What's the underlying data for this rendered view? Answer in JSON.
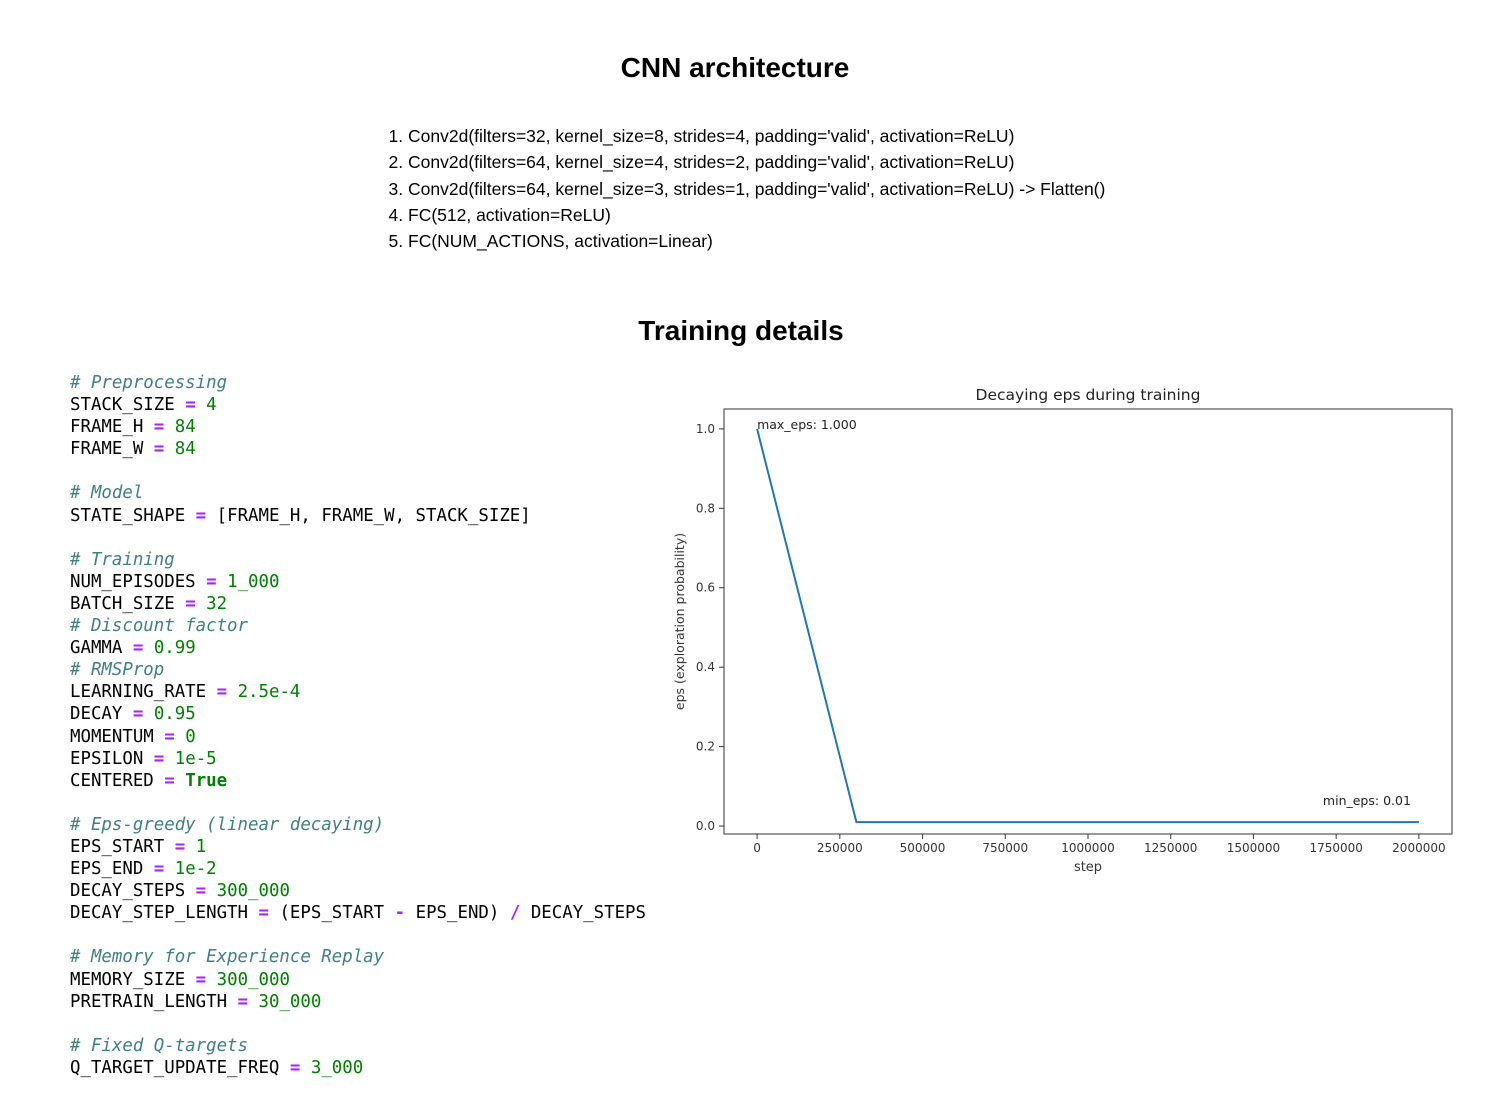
{
  "sections": {
    "cnn_title": "CNN architecture",
    "training_title": "Training details"
  },
  "architecture": [
    "Conv2d(filters=32, kernel_size=8, strides=4, padding='valid', activation=ReLU)",
    "Conv2d(filters=64, kernel_size=4, strides=2, padding='valid', activation=ReLU)",
    "Conv2d(filters=64, kernel_size=3, strides=1, padding='valid', activation=ReLU) -> Flatten()",
    "FC(512, activation=ReLU)",
    "FC(NUM_ACTIONS, activation=Linear)"
  ],
  "code": {
    "pre_comment": "# Preprocessing",
    "stack_name": "STACK_SIZE",
    "stack_val": "4",
    "fh_name": "FRAME_H",
    "fh_val": "84",
    "fw_name": "FRAME_W",
    "fw_val": "84",
    "model_comment": "# Model",
    "state_name": "STATE_SHAPE",
    "state_val": "[FRAME_H, FRAME_W, STACK_SIZE]",
    "train_comment": "# Training",
    "episodes_name": "NUM_EPISODES",
    "episodes_val": "1_000",
    "batch_name": "BATCH_SIZE",
    "batch_val": "32",
    "discount_comment": "# Discount factor",
    "gamma_name": "GAMMA",
    "gamma_val": "0.99",
    "rms_comment": "# RMSProp",
    "lr_name": "LEARNING_RATE",
    "lr_val": "2.5e-4",
    "decay_name": "DECAY",
    "decay_val": "0.95",
    "momentum_name": "MOMENTUM",
    "momentum_val": "0",
    "epsilon_name": "EPSILON",
    "epsilon_val": "1e-5",
    "centered_name": "CENTERED",
    "centered_val": "True",
    "eps_comment": "# Eps-greedy (linear decaying)",
    "eps_start_name": "EPS_START",
    "eps_start_val": "1",
    "eps_end_name": "EPS_END",
    "eps_end_val": "1e-2",
    "decay_steps_name": "DECAY_STEPS",
    "decay_steps_val": "300_000",
    "dsl_name": "DECAY_STEP_LENGTH",
    "dsl_a": "(EPS_START",
    "dsl_b": "EPS_END)",
    "dsl_c": "DECAY_STEPS",
    "mem_comment": "# Memory for Experience Replay",
    "mem_name": "MEMORY_SIZE",
    "mem_val": "300_000",
    "pretrain_name": "PRETRAIN_LENGTH",
    "pretrain_val": "30_000",
    "q_comment": "# Fixed Q-targets",
    "q_name": "Q_TARGET_UPDATE_FREQ",
    "q_val": "3_000",
    "op_eq": "=",
    "op_minus": "-",
    "op_div": "/"
  },
  "chart_data": {
    "type": "line",
    "title": "Decaying eps during training",
    "xlabel": "step",
    "ylabel": "eps (exploration probability)",
    "xlim": [
      -100000,
      2100000
    ],
    "ylim": [
      -0.02,
      1.05
    ],
    "xticks": [
      0,
      250000,
      500000,
      750000,
      1000000,
      1250000,
      1500000,
      1750000,
      2000000
    ],
    "xtick_labels": [
      "0",
      "250000",
      "500000",
      "750000",
      "1000000",
      "1250000",
      "1500000",
      "1750000",
      "2000000"
    ],
    "yticks": [
      0.0,
      0.2,
      0.4,
      0.6,
      0.8,
      1.0
    ],
    "ytick_labels": [
      "0.0",
      "0.2",
      "0.4",
      "0.6",
      "0.8",
      "1.0"
    ],
    "grid": false,
    "series": [
      {
        "x": [
          0,
          300000,
          2000000
        ],
        "y": [
          1.0,
          0.01,
          0.01
        ],
        "color": "#1f77b4"
      }
    ],
    "annotations": [
      {
        "text": "max_eps: 1.000",
        "x": 0,
        "y": 1.0
      },
      {
        "text": "min_eps: 0.01",
        "x": 2000000,
        "y": 0.01
      }
    ]
  }
}
